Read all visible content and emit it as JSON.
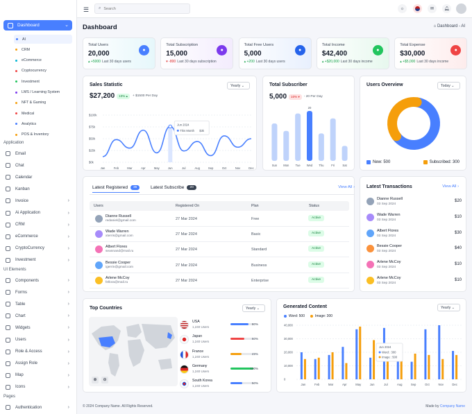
{
  "sidebar": {
    "dashboard": "Dashboard",
    "dashboard_sub": [
      {
        "label": "AI",
        "color": "#487fff"
      },
      {
        "label": "CRM",
        "color": "#f59e0b"
      },
      {
        "label": "eCommerce",
        "color": "#06b6d4"
      },
      {
        "label": "Cryptocurrency",
        "color": "#ef4444"
      },
      {
        "label": "Investment",
        "color": "#22c55e"
      },
      {
        "label": "LMS / Learning System",
        "color": "#7c3aed"
      },
      {
        "label": "NFT & Gaming",
        "color": "#f59e0b"
      },
      {
        "label": "Medical",
        "color": "#ef4444"
      },
      {
        "label": "Analytics",
        "color": "#487fff"
      },
      {
        "label": "POS & Inventory",
        "color": "#f59e0b"
      }
    ],
    "application_title": "Application",
    "application": [
      {
        "label": "Email",
        "arrow": false,
        "icon": "mail-icon"
      },
      {
        "label": "Chat",
        "arrow": false,
        "icon": "chat-icon"
      },
      {
        "label": "Calendar",
        "arrow": false,
        "icon": "calendar-icon"
      },
      {
        "label": "Kanban",
        "arrow": false,
        "icon": "kanban-icon"
      },
      {
        "label": "Invoice",
        "arrow": true,
        "icon": "invoice-icon"
      },
      {
        "label": "Ai Application",
        "arrow": true,
        "icon": "ai-icon"
      },
      {
        "label": "CRM",
        "arrow": true,
        "icon": "crm-icon"
      },
      {
        "label": "eCommerce",
        "arrow": true,
        "icon": "cart-icon"
      },
      {
        "label": "CryptoCurrency",
        "arrow": true,
        "icon": "crypto-icon"
      },
      {
        "label": "Investment",
        "arrow": true,
        "icon": "investment-icon"
      }
    ],
    "ui_title": "UI Elements",
    "ui": [
      {
        "label": "Components",
        "arrow": true,
        "icon": "components-icon"
      },
      {
        "label": "Forms",
        "arrow": true,
        "icon": "forms-icon"
      },
      {
        "label": "Table",
        "arrow": true,
        "icon": "table-icon"
      },
      {
        "label": "Chart",
        "arrow": true,
        "icon": "chart-icon"
      },
      {
        "label": "Widgets",
        "arrow": true,
        "icon": "widgets-icon"
      },
      {
        "label": "Users",
        "arrow": true,
        "icon": "users-icon"
      },
      {
        "label": "Role & Access",
        "arrow": true,
        "icon": "role-icon"
      },
      {
        "label": "Assign Role",
        "arrow": true,
        "icon": "assign-icon"
      },
      {
        "label": "Map",
        "arrow": true,
        "icon": "map-icon"
      },
      {
        "label": "Icons",
        "arrow": true,
        "icon": "icons-icon"
      }
    ],
    "pages_title": "Pages",
    "pages": [
      {
        "label": "Authentication",
        "arrow": true,
        "icon": "lock-icon"
      }
    ]
  },
  "topbar": {
    "search_placeholder": "Search"
  },
  "header": {
    "title": "Dashboard",
    "breadcrumb": "Dashboard - AI"
  },
  "stats": [
    {
      "label": "Total Users",
      "value": "20,000",
      "delta": "+5000",
      "delta_text": "Last 30 days users",
      "up": true,
      "bg": "#e6f7fb",
      "icon_bg": "#487fff",
      "icon": "users-icon"
    },
    {
      "label": "Total Subscription",
      "value": "15,000",
      "delta": "-800",
      "delta_text": "Last 30 days subscription",
      "up": false,
      "bg": "#f3ecfd",
      "icon_bg": "#7c3aed",
      "icon": "award-icon"
    },
    {
      "label": "Total Free Users",
      "value": "5,000",
      "delta": "+200",
      "delta_text": "Last 30 days users",
      "up": true,
      "bg": "#e8f0fe",
      "icon_bg": "#2563eb",
      "icon": "user-icon"
    },
    {
      "label": "Total Income",
      "value": "$42,400",
      "delta": "+$20,000",
      "delta_text": "Last 30 days income",
      "up": true,
      "bg": "#e7f8ee",
      "icon_bg": "#22c55e",
      "icon": "wallet-icon"
    },
    {
      "label": "Total Expense",
      "value": "$30,000",
      "delta": "+$5,000",
      "delta_text": "Last 30 days income",
      "up": true,
      "bg": "#fdecec",
      "icon_bg": "#ef4444",
      "icon": "expense-icon"
    }
  ],
  "sales": {
    "title": "Sales Statistic",
    "select": "Yearly",
    "amount": "$27,200",
    "pct": "10%",
    "per_day": "+ $1500 Per Day",
    "tooltip_month": "Jun 2024",
    "tooltip_label": "This Month",
    "tooltip_value": "$3k"
  },
  "subscriber": {
    "title": "Total Subscriber",
    "value": "5,000",
    "pct": "10%",
    "per_day": "- 20 Per Day"
  },
  "overview": {
    "title": "Users Overview",
    "select": "Today",
    "new_label": "New:",
    "new_value": "500",
    "sub_label": "Subscribed:",
    "sub_value": "300",
    "new_color": "#487fff",
    "sub_color": "#f59e0b"
  },
  "registered": {
    "tab1": "Latest Registered",
    "tab1_count": "35",
    "tab2": "Latest Subscribe",
    "tab2_count": "20",
    "view_all": "View All",
    "columns": [
      "Users",
      "Registered On",
      "Plan",
      "Status"
    ],
    "rows": [
      {
        "name": "Dianne Russell",
        "email": "redaniel@gmail.com",
        "date": "27 Mar 2024",
        "plan": "Free",
        "status": "Active",
        "color": "#94a3b8"
      },
      {
        "name": "Wade Warren",
        "email": "xterris@gmail.com",
        "date": "27 Mar 2024",
        "plan": "Basic",
        "status": "Active",
        "color": "#a78bfa"
      },
      {
        "name": "Albert Flores",
        "email": "seannand@mail.ru",
        "date": "27 Mar 2024",
        "plan": "Standard",
        "status": "Active",
        "color": "#f472b6"
      },
      {
        "name": "Bessie Cooper",
        "email": "igerrin@gmail.com",
        "date": "27 Mar 2024",
        "plan": "Business",
        "status": "Active",
        "color": "#60a5fa"
      },
      {
        "name": "Arlene McCoy",
        "email": "fellora@mail.ru",
        "date": "27 Mar 2024",
        "plan": "Enterprise",
        "status": "Active",
        "color": "#fbbf24"
      }
    ]
  },
  "transactions": {
    "title": "Latest Transactions",
    "view_all": "View All",
    "rows": [
      {
        "name": "Dianne Russell",
        "date": "03 Sep 2024",
        "amount": "$20",
        "color": "#94a3b8"
      },
      {
        "name": "Wade Warren",
        "date": "03 Sep 2024",
        "amount": "$10",
        "color": "#a78bfa"
      },
      {
        "name": "Albert Flores",
        "date": "03 Sep 2024",
        "amount": "$30",
        "color": "#60a5fa"
      },
      {
        "name": "Bessie Cooper",
        "date": "03 Sep 2024",
        "amount": "$40",
        "color": "#fb923c"
      },
      {
        "name": "Arlene McCoy",
        "date": "03 Sep 2024",
        "amount": "$10",
        "color": "#f472b6"
      },
      {
        "name": "Arlene McCoy",
        "date": "03 Sep 2024",
        "amount": "$10",
        "color": "#fbbf24"
      }
    ]
  },
  "countries": {
    "title": "Top Countries",
    "select": "Yearly",
    "rows": [
      {
        "name": "USA",
        "users": "1,240 Users",
        "pct": 80,
        "pct_label": "80%",
        "color": "#487fff"
      },
      {
        "name": "Japan",
        "users": "1,240 Users",
        "pct": 60,
        "pct_label": "60%",
        "color": "#ef4444"
      },
      {
        "name": "France",
        "users": "1,240 Users",
        "pct": 49,
        "pct_label": "49%",
        "color": "#f59e0b"
      },
      {
        "name": "Germany",
        "users": "1,240 Users",
        "pct": 100,
        "pct_label": "100%",
        "color": "#22c55e"
      },
      {
        "name": "South Korea",
        "users": "1,240 Users",
        "pct": 50,
        "pct_label": "50%",
        "color": "#487fff"
      }
    ]
  },
  "generated": {
    "title": "Generated Content",
    "select": "Yearly",
    "legend_word": "Word:",
    "legend_word_value": "500",
    "legend_image": "Image:",
    "legend_image_value": "300",
    "tooltip_month": "Jun 2024",
    "tooltip_word": "Word : 300",
    "tooltip_image": "Image : 500"
  },
  "footer": {
    "copyright": "© 2024 Company Name. All Rights Reserved.",
    "made_by": "Made by",
    "made_by_link": "Company Name"
  },
  "chart_data": [
    {
      "type": "line",
      "title": "Sales Statistic",
      "categories": [
        "Jan",
        "Feb",
        "Mar",
        "Apr",
        "May",
        "Jun",
        "Jul",
        "Aug",
        "Sep",
        "Oct",
        "Nov",
        "Dec"
      ],
      "values": [
        6,
        24,
        15,
        34,
        10,
        38,
        12,
        22,
        7,
        28,
        16,
        25
      ],
      "y_ticks": [
        "$100k",
        "$75k",
        "$50k",
        "$25k",
        "$0k"
      ],
      "ylim": [
        0,
        50
      ]
    },
    {
      "type": "bar",
      "title": "Total Subscriber",
      "categories": [
        "Sun",
        "Mon",
        "Tue",
        "Wed",
        "Thu",
        "Fri",
        "Sat"
      ],
      "values": [
        15,
        12,
        19,
        20,
        11,
        17,
        6
      ],
      "data_labels": [
        "",
        "",
        "",
        "20",
        "",
        "",
        ""
      ],
      "highlight": "Wed",
      "ylim": [
        0,
        20
      ]
    },
    {
      "type": "pie",
      "title": "Users Overview",
      "series": [
        {
          "name": "New",
          "value": 500
        },
        {
          "name": "Subscribed",
          "value": 300
        }
      ]
    },
    {
      "type": "bar",
      "title": "Generated Content",
      "categories": [
        "Jan",
        "Feb",
        "Mar",
        "Apr",
        "May",
        "Jun",
        "Jul",
        "Aug",
        "Sep",
        "Oct",
        "Nov",
        "Dec"
      ],
      "series": [
        {
          "name": "Word",
          "values": [
            20000,
            15000,
            18000,
            24000,
            37000,
            16000,
            38000,
            22000,
            13000,
            37000,
            40000,
            21000
          ]
        },
        {
          "name": "Image",
          "values": [
            15000,
            16000,
            20000,
            12000,
            39000,
            29000,
            23000,
            15000,
            19000,
            18000,
            15000,
            18000
          ]
        }
      ],
      "y_ticks": [
        "40,000",
        "30,000",
        "20,000",
        "10,000",
        "0"
      ],
      "ylim": [
        0,
        40000
      ]
    }
  ]
}
